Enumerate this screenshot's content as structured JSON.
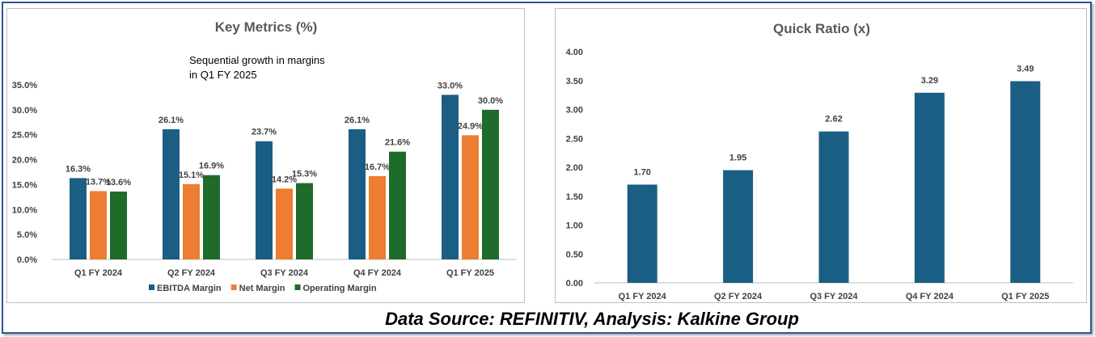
{
  "colors": {
    "ebitda": "#1b5e84",
    "net": "#ed7d31",
    "operating": "#1e6b2a",
    "quick": "#1b5e84",
    "frame": "#2f5597"
  },
  "footer": "Data Source: REFINITIV, Analysis: Kalkine Group",
  "chart_data": [
    {
      "type": "bar",
      "title": "Key Metrics (%)",
      "annotation": [
        "Sequential growth in margins",
        "in Q1 FY 2025"
      ],
      "categories": [
        "Q1 FY 2024",
        "Q2 FY 2024",
        "Q3 FY 2024",
        "Q4 FY 2024",
        "Q1 FY 2025"
      ],
      "series": [
        {
          "name": "EBITDA Margin",
          "values": [
            16.3,
            26.1,
            23.7,
            26.1,
            33.0
          ],
          "labels": [
            "16.3%",
            "26.1%",
            "23.7%",
            "26.1%",
            "33.0%"
          ]
        },
        {
          "name": "Net Margin",
          "values": [
            13.7,
            15.1,
            14.2,
            16.7,
            24.9
          ],
          "labels": [
            "13.7%",
            "15.1%",
            "14.2%",
            "16.7%",
            "24.9%"
          ]
        },
        {
          "name": "Operating Margin",
          "values": [
            13.6,
            16.9,
            15.3,
            21.6,
            30.0
          ],
          "labels": [
            "13.6%",
            "16.9%",
            "15.3%",
            "21.6%",
            "30.0%"
          ]
        }
      ],
      "ylim": [
        0,
        35
      ],
      "yticks": [
        "0.0%",
        "5.0%",
        "10.0%",
        "15.0%",
        "20.0%",
        "25.0%",
        "30.0%",
        "35.0%"
      ],
      "legend": "bottom",
      "grid": false
    },
    {
      "type": "bar",
      "title": "Quick Ratio (x)",
      "categories": [
        "Q1 FY 2024",
        "Q2 FY 2024",
        "Q3 FY 2024",
        "Q4 FY 2024",
        "Q1 FY 2025"
      ],
      "series": [
        {
          "values": [
            1.7,
            1.95,
            2.62,
            3.29,
            3.49
          ],
          "labels": [
            "1.70",
            "1.95",
            "2.62",
            "3.29",
            "3.49"
          ]
        }
      ],
      "ylim": [
        0,
        4
      ],
      "yticks": [
        "0.00",
        "0.50",
        "1.00",
        "1.50",
        "2.00",
        "2.50",
        "3.00",
        "3.50",
        "4.00"
      ],
      "legend": "none",
      "grid": false
    }
  ]
}
